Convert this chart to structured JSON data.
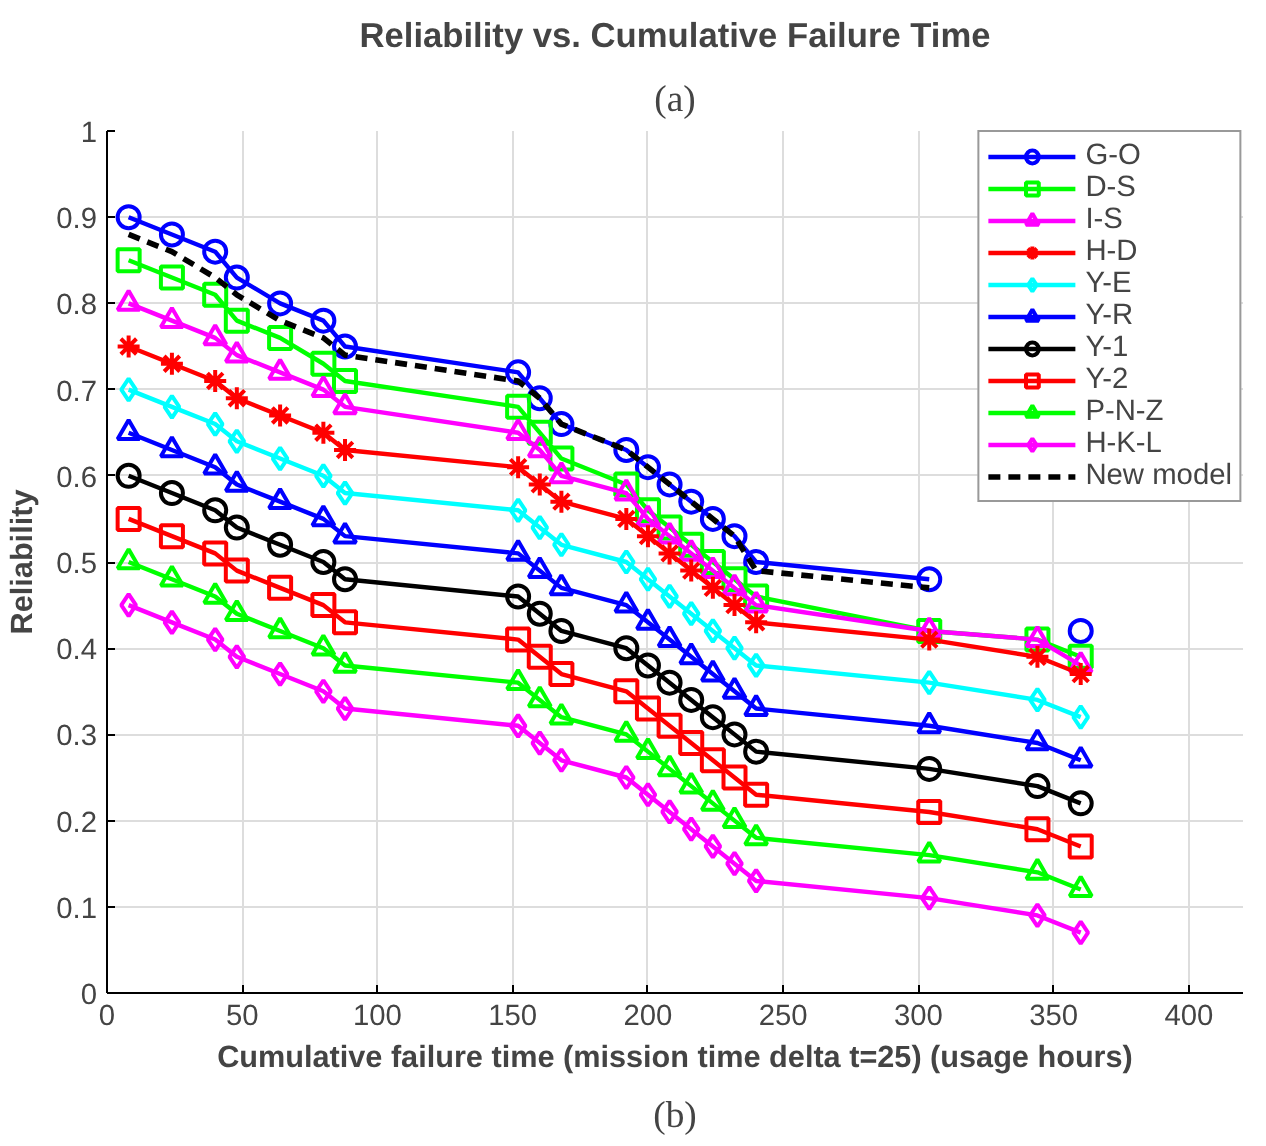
{
  "chart_data": {
    "type": "line",
    "title": "Reliability vs. Cumulative Failure Time",
    "xlabel": "Cumulative failure time (mission time delta t=25) (usage hours)",
    "ylabel": "Reliability",
    "annotations": [
      "(a)",
      "(b)"
    ],
    "x": [
      8,
      24,
      40,
      48,
      64,
      80,
      88,
      152,
      160,
      168,
      192,
      200,
      208,
      216,
      224,
      232,
      240,
      304,
      344,
      360
    ],
    "xlim": [
      0,
      420
    ],
    "xticks": [
      0,
      50,
      100,
      150,
      200,
      250,
      300,
      350,
      400
    ],
    "ylim": [
      0,
      1
    ],
    "yticks": [
      0,
      0.1,
      0.2,
      0.3,
      0.4,
      0.5,
      0.6,
      0.7,
      0.8,
      0.9,
      1
    ],
    "grid": true,
    "legend": "top right",
    "series": [
      {
        "name": "G-O",
        "color": "#0000ff",
        "marker": "circle",
        "values": [
          0.9,
          0.88,
          0.86,
          0.83,
          0.8,
          0.78,
          0.75,
          0.72,
          0.69,
          0.66,
          0.63,
          0.61,
          0.59,
          0.57,
          0.55,
          0.53,
          0.5,
          0.48,
          null,
          0.42
        ]
      },
      {
        "name": "D-S",
        "color": "#00ff00",
        "marker": "square",
        "values": [
          0.85,
          0.83,
          0.81,
          0.78,
          0.76,
          0.73,
          0.71,
          0.68,
          0.65,
          0.62,
          0.59,
          0.56,
          0.54,
          0.52,
          0.5,
          0.48,
          0.46,
          0.42,
          0.41,
          0.39
        ]
      },
      {
        "name": "I-S",
        "color": "#ff00ff",
        "marker": "triangle",
        "values": [
          0.8,
          0.78,
          0.76,
          0.74,
          0.72,
          0.7,
          0.68,
          0.65,
          0.63,
          0.6,
          0.58,
          0.55,
          0.53,
          0.51,
          0.49,
          0.47,
          0.45,
          0.42,
          0.41,
          0.38
        ]
      },
      {
        "name": "H-D",
        "color": "#ff0000",
        "marker": "cross",
        "values": [
          0.75,
          0.73,
          0.71,
          0.69,
          0.67,
          0.65,
          0.63,
          0.61,
          0.59,
          0.57,
          0.55,
          0.53,
          0.51,
          0.49,
          0.47,
          0.45,
          0.43,
          0.41,
          0.39,
          0.37
        ]
      },
      {
        "name": "Y-E",
        "color": "#00ffff",
        "marker": "diamond",
        "values": [
          0.7,
          0.68,
          0.66,
          0.64,
          0.62,
          0.6,
          0.58,
          0.56,
          0.54,
          0.52,
          0.5,
          0.48,
          0.46,
          0.44,
          0.42,
          0.4,
          0.38,
          0.36,
          0.34,
          0.32
        ]
      },
      {
        "name": "Y-R",
        "color": "#0000ff",
        "marker": "triangle",
        "values": [
          0.65,
          0.63,
          0.61,
          0.59,
          0.57,
          0.55,
          0.53,
          0.51,
          0.49,
          0.47,
          0.45,
          0.43,
          0.41,
          0.39,
          0.37,
          0.35,
          0.33,
          0.31,
          0.29,
          0.27
        ]
      },
      {
        "name": "Y-1",
        "color": "#000000",
        "marker": "circle",
        "values": [
          0.6,
          0.58,
          0.56,
          0.54,
          0.52,
          0.5,
          0.48,
          0.46,
          0.44,
          0.42,
          0.4,
          0.38,
          0.36,
          0.34,
          0.32,
          0.3,
          0.28,
          0.26,
          0.24,
          0.22
        ]
      },
      {
        "name": "Y-2",
        "color": "#ff0000",
        "marker": "square",
        "values": [
          0.55,
          0.53,
          0.51,
          0.49,
          0.47,
          0.45,
          0.43,
          0.41,
          0.39,
          0.37,
          0.35,
          0.33,
          0.31,
          0.29,
          0.27,
          0.25,
          0.23,
          0.21,
          0.19,
          0.17
        ]
      },
      {
        "name": "P-N-Z",
        "color": "#00ff00",
        "marker": "triangle",
        "values": [
          0.5,
          0.48,
          0.46,
          0.44,
          0.42,
          0.4,
          0.38,
          0.36,
          0.34,
          0.32,
          0.3,
          0.28,
          0.26,
          0.24,
          0.22,
          0.2,
          0.18,
          0.16,
          0.14,
          0.12
        ]
      },
      {
        "name": "H-K-L",
        "color": "#ff00ff",
        "marker": "diamond",
        "values": [
          0.45,
          0.43,
          0.41,
          0.39,
          0.37,
          0.35,
          0.33,
          0.31,
          0.29,
          0.27,
          0.25,
          0.23,
          0.21,
          0.19,
          0.17,
          0.15,
          0.13,
          0.11,
          0.09,
          0.07
        ]
      },
      {
        "name": "New model",
        "color": "#000000",
        "marker": "none",
        "line_style": "dashed",
        "values": [
          0.88,
          0.86,
          0.83,
          0.81,
          0.78,
          0.76,
          0.74,
          0.71,
          0.69,
          0.66,
          0.63,
          0.61,
          0.59,
          0.57,
          0.55,
          0.53,
          0.49,
          0.47,
          null,
          null
        ]
      }
    ]
  }
}
